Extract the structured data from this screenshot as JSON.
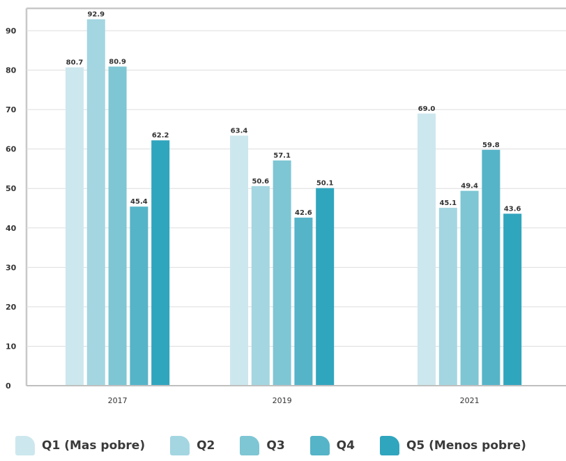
{
  "chart_data": {
    "type": "bar",
    "categories": [
      "2017",
      "2019",
      "2021"
    ],
    "series": [
      {
        "name": "Q1 (Mas pobre)",
        "color": "#cde7ee",
        "values": [
          80.7,
          63.4,
          69.0
        ],
        "labels": [
          "80.7",
          "63.4",
          "69.0"
        ]
      },
      {
        "name": "Q2",
        "color": "#a3d6e1",
        "values": [
          92.9,
          50.6,
          45.1
        ],
        "labels": [
          "92.9",
          "50.6",
          "45.1"
        ]
      },
      {
        "name": "Q3",
        "color": "#7ec6d4",
        "values": [
          80.9,
          57.1,
          49.4
        ],
        "labels": [
          "80.9",
          "57.1",
          "49.4"
        ]
      },
      {
        "name": "Q4",
        "color": "#55b4c8",
        "values": [
          45.4,
          42.6,
          59.8
        ],
        "labels": [
          "45.4",
          "42.6",
          "59.8"
        ]
      },
      {
        "name": "Q5 (Menos pobre)",
        "color": "#30a5be",
        "values": [
          62.2,
          50.1,
          43.6
        ],
        "labels": [
          "62.2",
          "50.1",
          "43.6"
        ]
      }
    ],
    "y_ticks": [
      "0",
      "10",
      "20",
      "30",
      "40",
      "50",
      "60",
      "70",
      "80",
      "90"
    ],
    "ylim": [
      0,
      97
    ],
    "grid": true,
    "legend_position": "bottom",
    "title": "",
    "xlabel": "",
    "ylabel": ""
  }
}
